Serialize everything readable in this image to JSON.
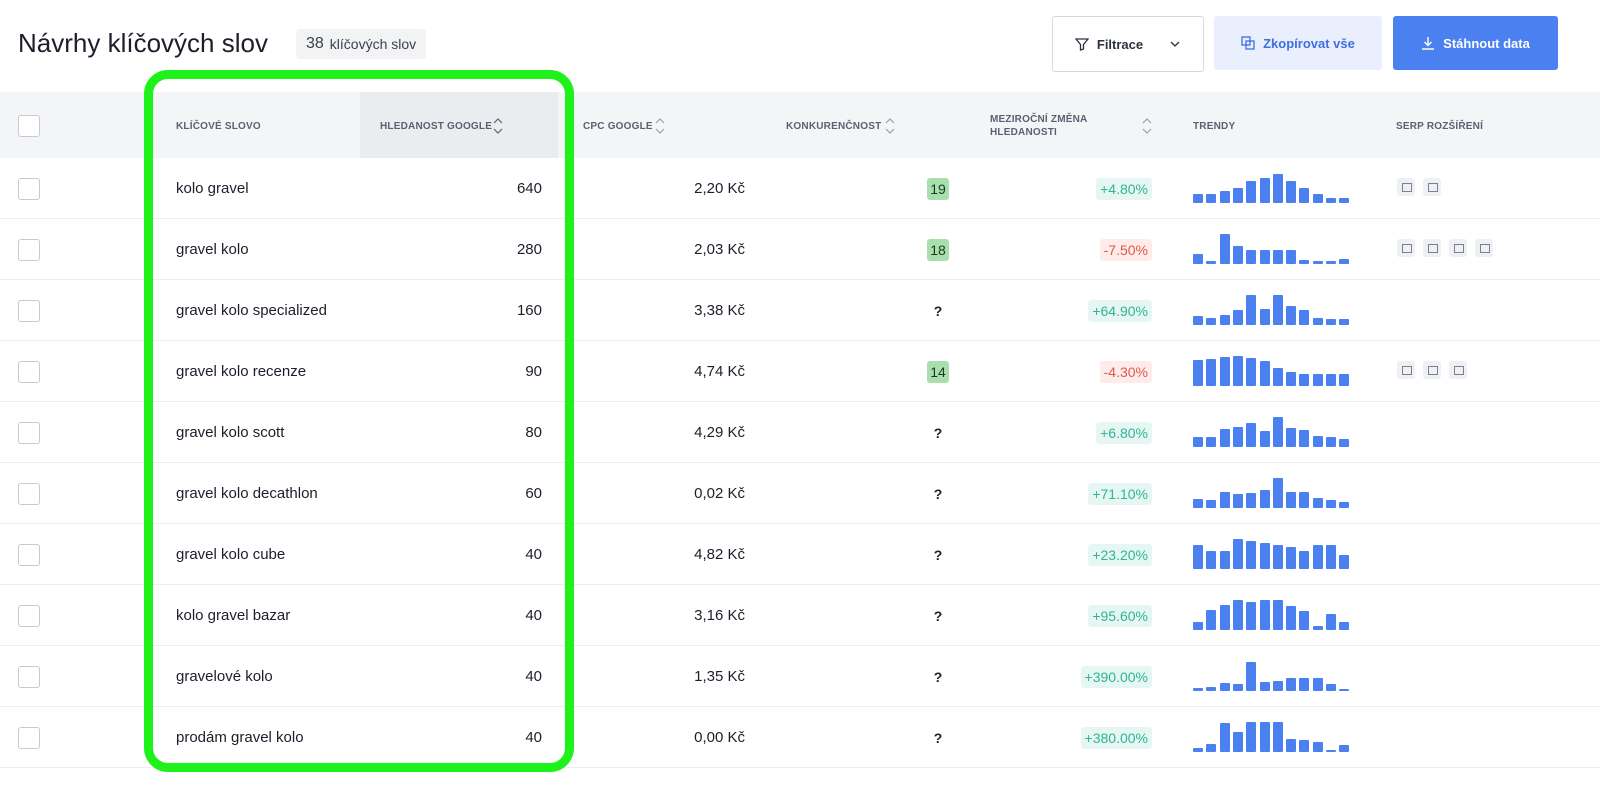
{
  "header": {
    "title": "Návrhy klíčových slov",
    "count": 38,
    "count_label": "klíčových slov",
    "buttons": [
      "Filtrace",
      "Zkopírovat vše",
      "Stáhnout data"
    ]
  },
  "table": {
    "columns": [
      "KLÍČOVÉ SLOVO",
      "HLEDANOST GOOGLE",
      "CPC GOOGLE",
      "KONKURENČNOST",
      "MEZIROČNÍ ZMĚNA HLEDANOSTI",
      "TRENDY",
      "SERP ROZŠÍŘENÍ"
    ],
    "rows": [
      {
        "keyword": "kolo gravel",
        "volume": 640,
        "cpc": "2,20 Kč",
        "competition": 19,
        "change": "+4.80%",
        "trend": [
          9,
          9,
          12,
          15,
          22,
          25,
          29,
          22,
          15,
          9,
          5,
          5
        ]
      },
      {
        "keyword": "gravel kolo",
        "volume": 280,
        "cpc": "2,03 Kč",
        "competition": 18,
        "change": "-7.50%",
        "trend": [
          10,
          3,
          30,
          18,
          14,
          14,
          14,
          14,
          4,
          3,
          3,
          5
        ]
      },
      {
        "keyword": "gravel kolo specialized",
        "volume": 160,
        "cpc": "3,38 Kč",
        "competition": "?",
        "change": "+64.90%",
        "trend": [
          9,
          7,
          10,
          15,
          30,
          16,
          30,
          19,
          15,
          7,
          6,
          6
        ]
      },
      {
        "keyword": "gravel kolo recenze",
        "volume": 90,
        "cpc": "4,74 Kč",
        "competition": 14,
        "change": "-4.30%",
        "trend": [
          26,
          27,
          29,
          30,
          28,
          25,
          18,
          14,
          12,
          12,
          12,
          12
        ]
      },
      {
        "keyword": "gravel kolo scott",
        "volume": 80,
        "cpc": "4,29 Kč",
        "competition": "?",
        "change": "+6.80%",
        "trend": [
          10,
          10,
          18,
          20,
          24,
          16,
          30,
          19,
          17,
          11,
          10,
          8
        ]
      },
      {
        "keyword": "gravel kolo decathlon",
        "volume": 60,
        "cpc": "0,02 Kč",
        "competition": "?",
        "change": "+71.10%",
        "trend": [
          9,
          8,
          16,
          14,
          15,
          18,
          30,
          16,
          16,
          10,
          8,
          6
        ]
      },
      {
        "keyword": "gravel kolo cube",
        "volume": 40,
        "cpc": "4,82 Kč",
        "competition": "?",
        "change": "+23.20%",
        "trend": [
          24,
          18,
          18,
          30,
          28,
          26,
          24,
          22,
          18,
          24,
          24,
          14
        ]
      },
      {
        "keyword": "kolo gravel bazar",
        "volume": 40,
        "cpc": "3,16 Kč",
        "competition": "?",
        "change": "+95.60%",
        "trend": [
          8,
          20,
          25,
          30,
          28,
          30,
          30,
          24,
          19,
          4,
          16,
          8
        ]
      },
      {
        "keyword": "gravelové kolo",
        "volume": 40,
        "cpc": "1,35 Kč",
        "competition": "?",
        "change": "+390.00%",
        "trend": [
          3,
          4,
          8,
          7,
          29,
          9,
          10,
          13,
          13,
          13,
          7,
          2
        ]
      },
      {
        "keyword": "prodám gravel kolo",
        "volume": 40,
        "cpc": "0,00 Kč",
        "competition": "?",
        "change": "+380.00%",
        "trend": [
          4,
          8,
          29,
          20,
          30,
          30,
          30,
          13,
          12,
          10,
          2,
          7
        ]
      }
    ]
  }
}
